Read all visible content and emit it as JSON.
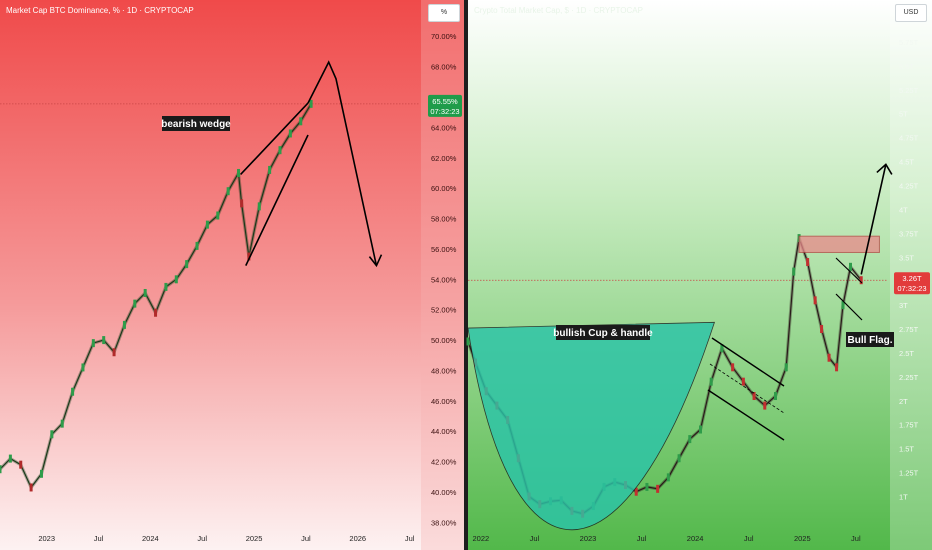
{
  "left_pane": {
    "title": "Market Cap BTC Dominance, % · 1D · CRYPTOCAP",
    "unit_button": "%",
    "price_label": "65.55%",
    "timer_label": "07:32:23",
    "annotation": "bearish wedge",
    "axis_color_top": "#f25c5c",
    "axis_color_bottom": "#ffffff"
  },
  "right_pane": {
    "title": "Crypto Total Market Cap, $ · 1D · CRYPTOCAP",
    "unit_button": "USD",
    "price_label": "3.26T",
    "timer_label": "07:32:23",
    "annotation_cup": "bullish Cup & handle",
    "annotation_flag": "Bull Flag."
  },
  "chart_data": [
    {
      "type": "line",
      "title": "Market Cap BTC Dominance, % · 1D · CRYPTOCAP",
      "y_ticks": [
        "70.00%",
        "68.00%",
        "66.00%",
        "64.00%",
        "62.00%",
        "60.00%",
        "58.00%",
        "56.00%",
        "54.00%",
        "52.00%",
        "50.00%",
        "48.00%",
        "46.00%",
        "44.00%",
        "42.00%",
        "40.00%",
        "38.00%"
      ],
      "y_tick_values": [
        70,
        68,
        66,
        64,
        62,
        60,
        58,
        56,
        54,
        52,
        50,
        48,
        46,
        44,
        42,
        40,
        38
      ],
      "ylim": [
        37.5,
        71.2
      ],
      "x_ticks": [
        "2023",
        "Jul",
        "2024",
        "Jul",
        "2025",
        "Jul",
        "2026",
        "Jul"
      ],
      "x_tick_values": [
        2023.0,
        2023.5,
        2024.0,
        2024.5,
        2025.0,
        2025.5,
        2026.0,
        2026.5
      ],
      "xlim": [
        2022.55,
        2026.6
      ],
      "last_value": 65.55,
      "series": [
        {
          "x": [
            2022.55,
            2022.65,
            2022.75,
            2022.85,
            2022.95,
            2023.05,
            2023.15,
            2023.25,
            2023.35,
            2023.45,
            2023.55,
            2023.65,
            2023.75,
            2023.85,
            2023.95,
            2024.05,
            2024.15,
            2024.25,
            2024.35,
            2024.45,
            2024.55,
            2024.65,
            2024.75,
            2024.85,
            2024.88,
            2024.95,
            2025.05,
            2025.15,
            2025.25,
            2025.35,
            2025.45,
            2025.55
          ],
          "values": [
            41.5,
            42.2,
            41.8,
            40.3,
            41.2,
            43.8,
            44.5,
            46.6,
            48.2,
            49.8,
            50.0,
            49.2,
            51.0,
            52.4,
            53.1,
            51.8,
            53.5,
            54.0,
            55.0,
            56.2,
            57.6,
            58.2,
            59.8,
            61.0,
            59.0,
            55.5,
            58.8,
            61.2,
            62.5,
            63.6,
            64.4,
            65.55
          ]
        }
      ],
      "wedge_upper": {
        "x": [
          2024.87,
          2025.52
        ],
        "values": [
          60.9,
          65.6
        ]
      },
      "wedge_lower": {
        "x": [
          2024.92,
          2025.52
        ],
        "values": [
          54.9,
          63.5
        ]
      },
      "projection": {
        "x": [
          2025.52,
          2025.72,
          2025.79,
          2026.18
        ],
        "values": [
          65.6,
          68.3,
          67.2,
          54.9
        ]
      }
    },
    {
      "type": "line",
      "title": "Crypto Total Market Cap, $ · 1D · CRYPTOCAP",
      "y_ticks": [
        "5.75T",
        "5.5T",
        "5.25T",
        "5T",
        "4.75T",
        "4.5T",
        "4.25T",
        "4T",
        "3.75T",
        "3.5T",
        "3.25T",
        "3T",
        "2.75T",
        "2.5T",
        "2.25T",
        "2T",
        "1.75T",
        "1.5T",
        "1.25T",
        "1T"
      ],
      "y_tick_values": [
        5.75,
        5.5,
        5.25,
        5,
        4.75,
        4.5,
        4.25,
        4,
        3.75,
        3.5,
        3.25,
        3,
        2.75,
        2.5,
        2.25,
        2,
        1.75,
        1.5,
        1.25,
        1
      ],
      "ylim": [
        0.65,
        6.0
      ],
      "x_ticks": [
        "2022",
        "Jul",
        "2023",
        "Jul",
        "2024",
        "Jul",
        "2025",
        "Jul"
      ],
      "x_tick_values": [
        2022.0,
        2022.5,
        2023.0,
        2023.5,
        2024.0,
        2024.5,
        2025.0,
        2025.5
      ],
      "xlim": [
        2021.88,
        2025.8
      ],
      "last_value": 3.26,
      "series": [
        {
          "x": [
            2021.88,
            2021.95,
            2022.05,
            2022.15,
            2022.25,
            2022.35,
            2022.45,
            2022.55,
            2022.65,
            2022.75,
            2022.85,
            2022.95,
            2023.05,
            2023.15,
            2023.25,
            2023.35,
            2023.45,
            2023.55,
            2023.65,
            2023.75,
            2023.85,
            2023.95,
            2024.05,
            2024.15,
            2024.25,
            2024.35,
            2024.45,
            2024.55,
            2024.65,
            2024.75,
            2024.85,
            2024.92,
            2024.97,
            2025.05,
            2025.12,
            2025.18,
            2025.25,
            2025.32,
            2025.38,
            2025.45,
            2025.55
          ],
          "values": [
            2.62,
            2.4,
            2.1,
            1.95,
            1.8,
            1.4,
            1.0,
            0.92,
            0.95,
            0.96,
            0.85,
            0.82,
            0.9,
            1.1,
            1.15,
            1.12,
            1.05,
            1.1,
            1.08,
            1.2,
            1.4,
            1.6,
            1.7,
            2.2,
            2.55,
            2.35,
            2.2,
            2.05,
            1.95,
            2.05,
            2.35,
            3.35,
            3.7,
            3.45,
            3.05,
            2.75,
            2.45,
            2.35,
            3.0,
            3.4,
            3.26
          ]
        }
      ],
      "resistance_zone": {
        "x": [
          2024.97,
          2025.72
        ],
        "values": [
          3.55,
          3.72
        ]
      },
      "cup_rim": {
        "x": [
          2021.88,
          2024.18
        ],
        "values": [
          2.76,
          2.82
        ]
      },
      "projection": {
        "x": [
          2025.55,
          2025.78
        ],
        "values": [
          3.32,
          4.47
        ]
      }
    }
  ]
}
